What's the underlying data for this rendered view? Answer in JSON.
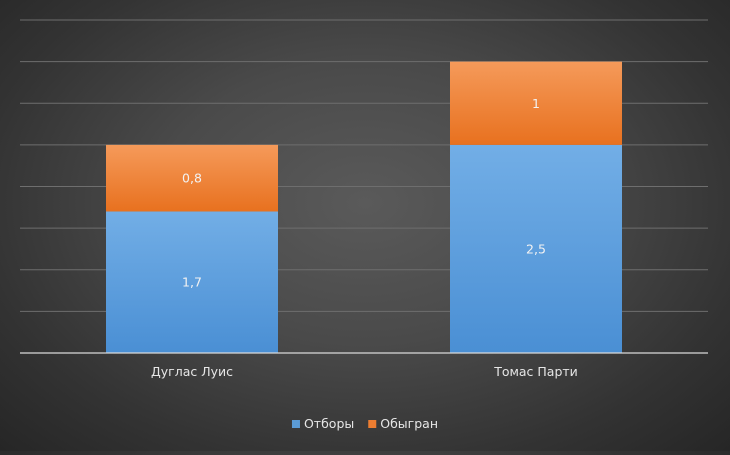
{
  "chart_data": {
    "type": "bar",
    "stacked": true,
    "categories": [
      "Дуглас Луис",
      "Томас Парти"
    ],
    "series": [
      {
        "name": "Отборы",
        "values": [
          1.7,
          2.5
        ],
        "labels": [
          "1,7",
          "2,5"
        ],
        "color": "#5b9bd5"
      },
      {
        "name": "Обыгран",
        "values": [
          0.8,
          1
        ],
        "labels": [
          "0,8",
          "1"
        ],
        "color": "#ed7d31"
      }
    ],
    "ylim": [
      0,
      4
    ],
    "y_gridline_step": 0.5,
    "grid": true,
    "show_y_axis_labels": false,
    "legend_position": "bottom",
    "title": "",
    "xlabel": "",
    "ylabel": ""
  }
}
